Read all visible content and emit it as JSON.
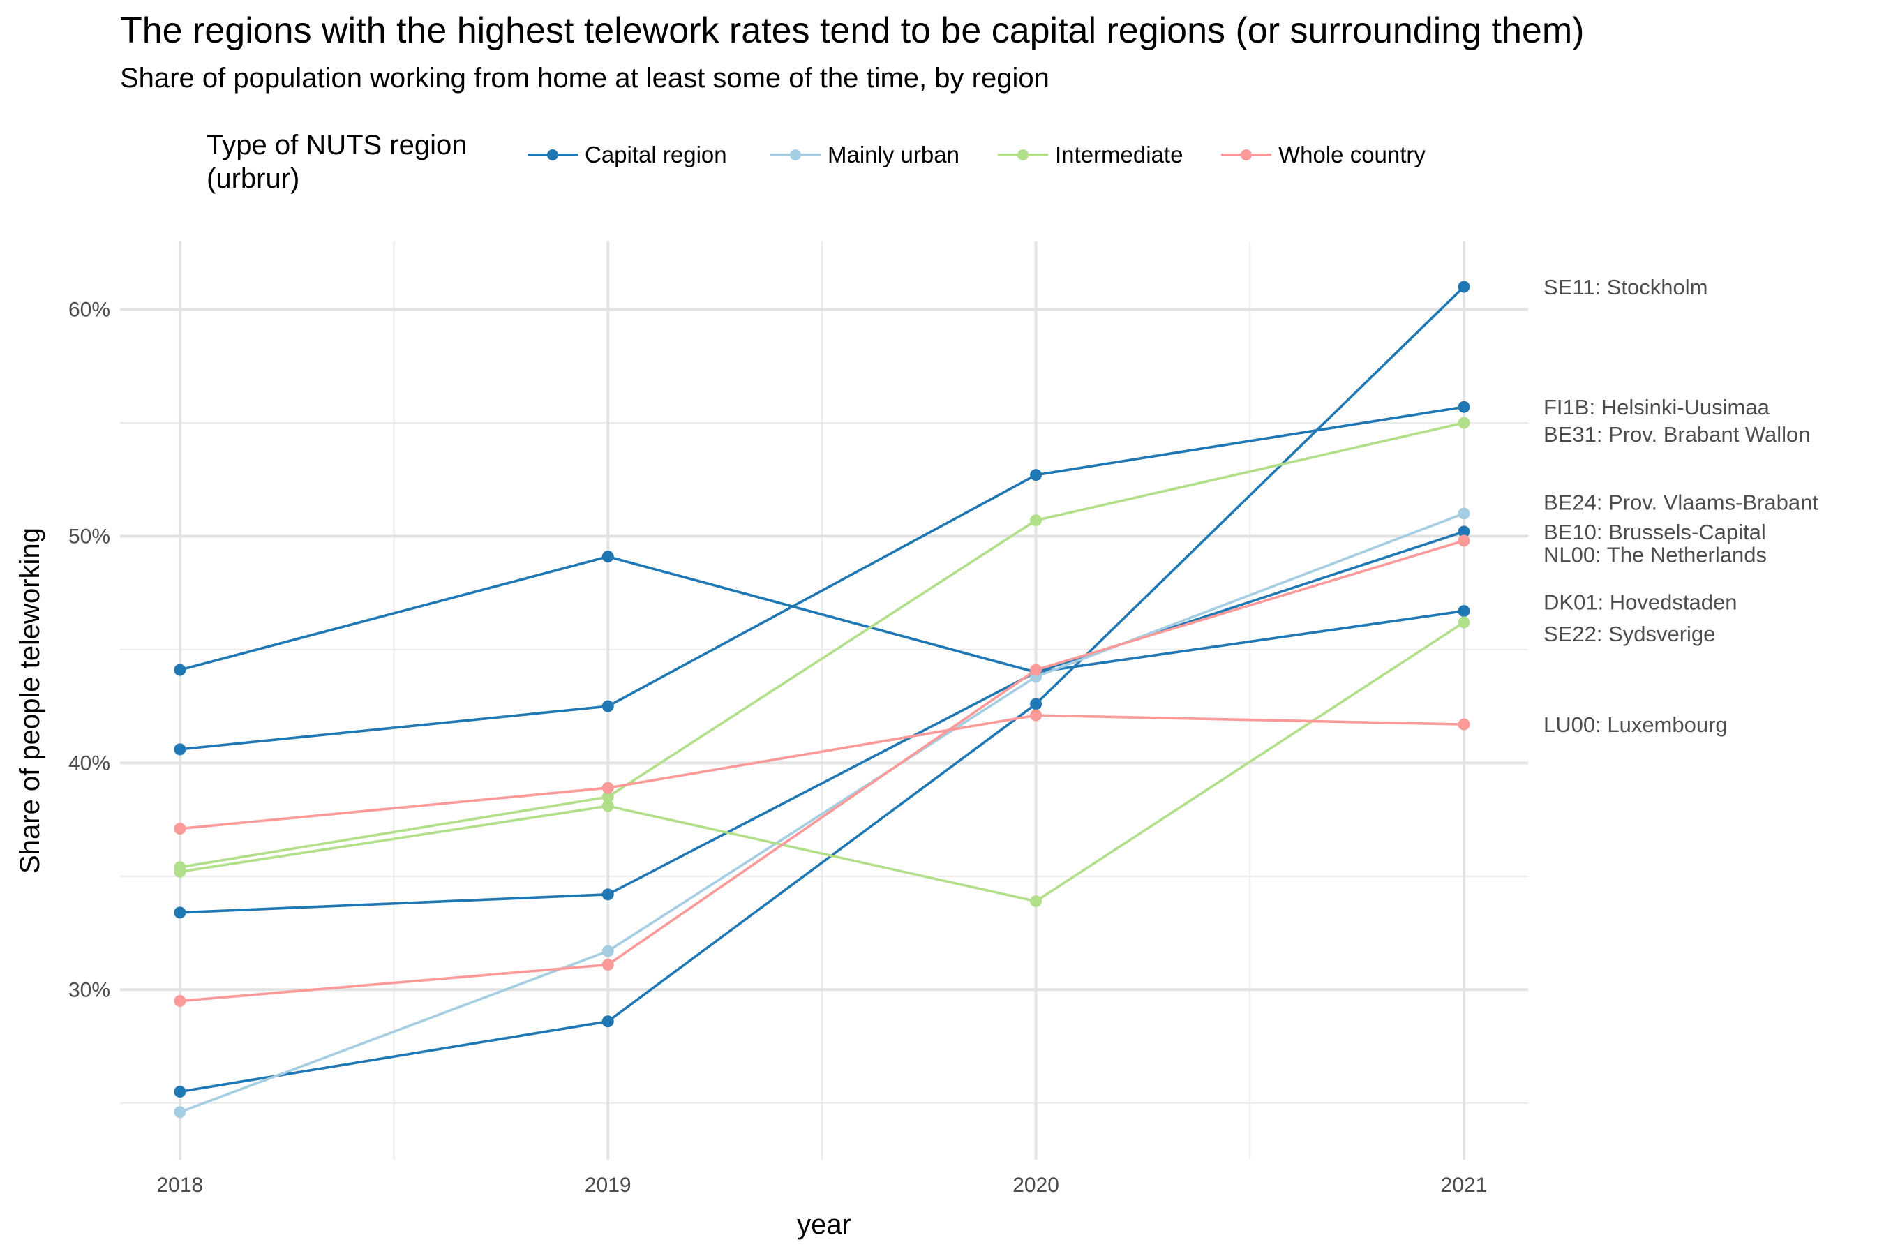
{
  "chart_data": {
    "type": "line",
    "title": "The regions with the highest telework rates tend to be capital regions (or surrounding them)",
    "subtitle": "Share of population working from home at least some of the time, by region",
    "xlabel": "year",
    "ylabel": "Share of people teleworking",
    "x": [
      2018,
      2019,
      2020,
      2021
    ],
    "x_tick_labels": [
      "2018",
      "2019",
      "2020",
      "2021"
    ],
    "y_ticks": [
      30,
      40,
      50,
      60
    ],
    "y_tick_labels": [
      "30%",
      "40%",
      "50%",
      "60%"
    ],
    "ylim": [
      22.5,
      63
    ],
    "xlim": [
      2017.86,
      2021.15
    ],
    "grid": true,
    "legend": {
      "title_lines": [
        "Type of NUTS region",
        "(urbrur)"
      ],
      "placement": "top",
      "entries": [
        {
          "label": "Capital region",
          "color": "#1f78b4"
        },
        {
          "label": "Mainly urban",
          "color": "#a6cee3"
        },
        {
          "label": "Intermediate",
          "color": "#b2df8a"
        },
        {
          "label": "Whole country",
          "color": "#fb9a99"
        }
      ]
    },
    "series": [
      {
        "name": "SE11: Stockholm",
        "group": "Capital region",
        "color": "#1f78b4",
        "values": [
          25.5,
          28.6,
          42.6,
          61.0
        ]
      },
      {
        "name": "FI1B: Helsinki-Uusimaa",
        "group": "Capital region",
        "color": "#1f78b4",
        "values": [
          40.6,
          42.5,
          52.7,
          55.7
        ]
      },
      {
        "name": "BE10: Brussels-Capital",
        "group": "Capital region",
        "color": "#1f78b4",
        "values": [
          33.4,
          34.2,
          44.0,
          50.2
        ]
      },
      {
        "name": "DK01: Hovedstaden",
        "group": "Capital region",
        "color": "#1f78b4",
        "values": [
          44.1,
          49.1,
          44.0,
          46.7
        ]
      },
      {
        "name": "BE24: Prov. Vlaams-Brabant",
        "group": "Mainly urban",
        "color": "#a6cee3",
        "values": [
          24.6,
          31.7,
          43.8,
          51.0
        ]
      },
      {
        "name": "BE31: Prov. Brabant Wallon",
        "group": "Intermediate",
        "color": "#b2df8a",
        "values": [
          35.4,
          38.5,
          50.7,
          55.0
        ]
      },
      {
        "name": "SE22: Sydsverige",
        "group": "Intermediate",
        "color": "#b2df8a",
        "values": [
          35.2,
          38.1,
          33.9,
          46.2
        ]
      },
      {
        "name": "NL00: The Netherlands",
        "group": "Whole country",
        "color": "#fb9a99",
        "values": [
          29.5,
          31.1,
          44.1,
          49.8
        ]
      },
      {
        "name": "LU00: Luxembourg",
        "group": "Whole country",
        "color": "#fb9a99",
        "values": [
          37.1,
          38.9,
          42.1,
          41.7
        ]
      }
    ],
    "end_labels": [
      {
        "text": "SE11: Stockholm",
        "y": 61.0
      },
      {
        "text": "FI1B: Helsinki-Uusimaa",
        "y": 55.7
      },
      {
        "text": "BE31: Prov. Brabant Wallon",
        "y": 54.5
      },
      {
        "text": "BE24: Prov. Vlaams-Brabant",
        "y": 51.5
      },
      {
        "text": "BE10: Brussels-Capital",
        "y": 50.2
      },
      {
        "text": "NL00: The Netherlands",
        "y": 49.2
      },
      {
        "text": "DK01: Hovedstaden",
        "y": 47.1
      },
      {
        "text": "SE22: Sydsverige",
        "y": 45.7
      },
      {
        "text": "LU00: Luxembourg",
        "y": 41.7
      }
    ]
  }
}
